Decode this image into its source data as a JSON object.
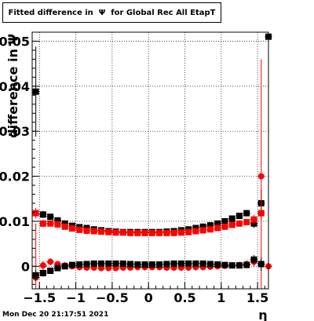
{
  "chart_data": {
    "type": "scatter",
    "title": "Fitted difference in  Ψ  for Global Rec All EtapT",
    "xlabel": "η",
    "ylabel": "difference in Ψ",
    "xlim": [
      -1.6,
      1.65
    ],
    "ylim": [
      -0.005,
      0.052
    ],
    "x_ticks": [
      -1.5,
      -1,
      -0.5,
      0,
      0.5,
      1,
      1.5
    ],
    "x_tick_labels": [
      "−1.5",
      "−1",
      "−0.5",
      "0",
      "0.5",
      "1",
      "1.5"
    ],
    "y_ticks": [
      0,
      0.01,
      0.02,
      0.03,
      0.04,
      0.05
    ],
    "y_tick_labels": [
      "0",
      "0.01",
      "0.02",
      "0.03",
      "0.04",
      "0.05"
    ],
    "grid": true,
    "series": [
      {
        "marker": "square",
        "color": "#000000",
        "x": [
          -1.55,
          -1.45,
          -1.35,
          -1.25,
          -1.15,
          -1.05,
          -0.95,
          -0.85,
          -0.75,
          -0.65,
          -0.55,
          -0.45,
          -0.35,
          -0.25,
          -0.15,
          -0.05,
          0.05,
          0.15,
          0.25,
          0.35,
          0.45,
          0.55,
          0.65,
          0.75,
          0.85,
          0.95,
          1.05,
          1.15,
          1.25,
          1.35,
          1.45,
          1.55,
          1.65
        ],
        "y": [
          0.0388,
          0.0115,
          0.011,
          0.0102,
          0.0095,
          0.009,
          0.0087,
          0.0085,
          0.0082,
          0.008,
          0.0078,
          0.0077,
          0.0076,
          0.0076,
          0.0076,
          0.0076,
          0.0076,
          0.0076,
          0.0077,
          0.0078,
          0.008,
          0.0082,
          0.0085,
          0.0088,
          0.0091,
          0.0095,
          0.01,
          0.0106,
          0.0112,
          0.0118,
          0.0095,
          0.014,
          0.051
        ],
        "err": [
          0.01,
          0.0008,
          0.0006,
          0.0005,
          0.0005,
          0.0004,
          0.0004,
          0.0004,
          0.0004,
          0.0004,
          0.0003,
          0.0003,
          0.0003,
          0.0003,
          0.0003,
          0.0003,
          0.0003,
          0.0003,
          0.0003,
          0.0003,
          0.0003,
          0.0004,
          0.0004,
          0.0004,
          0.0004,
          0.0004,
          0.0005,
          0.0005,
          0.0006,
          0.0007,
          0.001,
          0.003,
          0.05
        ]
      },
      {
        "marker": "circle",
        "color": "#ff0000",
        "x": [
          -1.55,
          -1.45,
          -1.35,
          -1.25,
          -1.15,
          -1.05,
          -0.95,
          -0.85,
          -0.75,
          -0.65,
          -0.55,
          -0.45,
          -0.35,
          -0.25,
          -0.15,
          -0.05,
          0.05,
          0.15,
          0.25,
          0.35,
          0.45,
          0.55,
          0.65,
          0.75,
          0.85,
          0.95,
          1.05,
          1.15,
          1.25,
          1.35,
          1.45,
          1.55,
          1.65
        ],
        "y": [
          -0.0025,
          0.0002,
          0.001,
          0.0005,
          0.0002,
          0.0,
          -0.0002,
          -0.0003,
          -0.0003,
          -0.0004,
          -0.0004,
          -0.0004,
          -0.0003,
          -0.0003,
          -0.0002,
          -0.0002,
          -0.0002,
          -0.0002,
          -0.0003,
          -0.0003,
          -0.0003,
          -0.0003,
          -0.0002,
          -0.0002,
          -0.0001,
          0.0,
          0.0001,
          0.0002,
          0.0003,
          0.0005,
          0.001,
          0.02,
          0.0
        ],
        "err": [
          0.012,
          0.001,
          0.0008,
          0.0006,
          0.0005,
          0.0004,
          0.0004,
          0.0004,
          0.0004,
          0.0004,
          0.0003,
          0.0003,
          0.0003,
          0.0003,
          0.0003,
          0.0003,
          0.0003,
          0.0003,
          0.0003,
          0.0003,
          0.0003,
          0.0004,
          0.0004,
          0.0004,
          0.0004,
          0.0004,
          0.0005,
          0.0005,
          0.0006,
          0.0008,
          0.0012,
          0.026,
          0.0
        ]
      },
      {
        "marker": "square",
        "color": "#000000",
        "x": [
          -1.55,
          -1.45,
          -1.35,
          -1.25,
          -1.15,
          -1.05,
          -0.95,
          -0.85,
          -0.75,
          -0.65,
          -0.55,
          -0.45,
          -0.35,
          -0.25,
          -0.15,
          -0.05,
          0.05,
          0.15,
          0.25,
          0.35,
          0.45,
          0.55,
          0.65,
          0.75,
          0.85,
          0.95,
          1.05,
          1.15,
          1.25,
          1.35,
          1.45,
          1.55
        ],
        "y": [
          -0.002,
          -0.0015,
          -0.001,
          -0.0004,
          0.0,
          0.0003,
          0.0004,
          0.0005,
          0.0006,
          0.0006,
          0.0006,
          0.0006,
          0.0006,
          0.0005,
          0.0004,
          0.0004,
          0.0004,
          0.0004,
          0.0005,
          0.0006,
          0.0006,
          0.0006,
          0.0006,
          0.0006,
          0.0005,
          0.0004,
          0.0003,
          0.0002,
          0.0002,
          0.0003,
          0.0015,
          0.0005
        ],
        "err": [
          0.0012,
          0.0008,
          0.0006,
          0.0005,
          0.0005,
          0.0004,
          0.0004,
          0.0004,
          0.0004,
          0.0004,
          0.0003,
          0.0003,
          0.0003,
          0.0003,
          0.0003,
          0.0003,
          0.0003,
          0.0003,
          0.0003,
          0.0003,
          0.0003,
          0.0004,
          0.0004,
          0.0004,
          0.0004,
          0.0004,
          0.0005,
          0.0005,
          0.0006,
          0.0007,
          0.001,
          0.0015
        ]
      },
      {
        "marker": "square",
        "color": "#ff0000",
        "x": [
          -1.55,
          -1.45,
          -1.35,
          -1.25,
          -1.15,
          -1.05,
          -0.95,
          -0.85,
          -0.75,
          -0.65,
          -0.55,
          -0.45,
          -0.35,
          -0.25,
          -0.15,
          -0.05,
          0.05,
          0.15,
          0.25,
          0.35,
          0.45,
          0.55,
          0.65,
          0.75,
          0.85,
          0.95,
          1.05,
          1.15,
          1.25,
          1.35,
          1.45,
          1.55
        ],
        "y": [
          0.0118,
          0.0095,
          0.0095,
          0.0093,
          0.0088,
          0.0084,
          0.0081,
          0.0079,
          0.0078,
          0.0077,
          0.0076,
          0.0075,
          0.0075,
          0.0074,
          0.0074,
          0.0074,
          0.0074,
          0.0074,
          0.0074,
          0.0074,
          0.0075,
          0.0076,
          0.0078,
          0.008,
          0.0082,
          0.0085,
          0.0088,
          0.0092,
          0.0095,
          0.0098,
          0.0104,
          0.0118
        ],
        "err": [
          0.0012,
          0.0008,
          0.0006,
          0.0005,
          0.0005,
          0.0004,
          0.0004,
          0.0004,
          0.0004,
          0.0004,
          0.0003,
          0.0003,
          0.0003,
          0.0003,
          0.0003,
          0.0003,
          0.0003,
          0.0003,
          0.0003,
          0.0003,
          0.0003,
          0.0004,
          0.0004,
          0.0004,
          0.0004,
          0.0004,
          0.0005,
          0.0005,
          0.0006,
          0.0007,
          0.001,
          0.0015
        ]
      }
    ]
  },
  "footer": {
    "timestamp": "Mon Dec 20 21:17:51 2021"
  }
}
